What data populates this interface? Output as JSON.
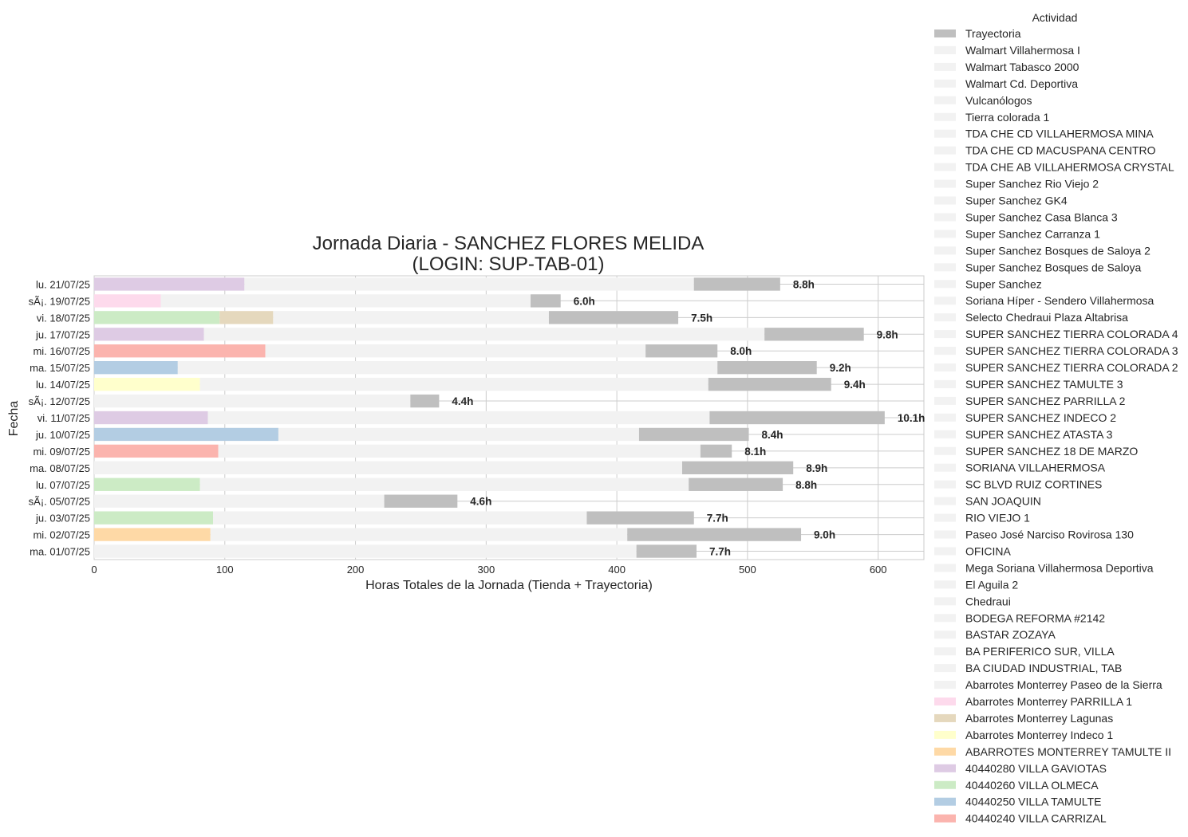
{
  "chart_data": {
    "type": "bar",
    "orientation": "horizontal",
    "stacked": true,
    "title": "Jornada Diaria - SANCHEZ FLORES MELIDA\n(LOGIN: SUP-TAB-01)",
    "xlabel": "Horas Totales de la Jornada (Tienda + Trayectoria)",
    "ylabel": "Fecha",
    "xlim": [
      0,
      635
    ],
    "xticks": [
      0,
      100,
      200,
      300,
      400,
      500,
      600
    ],
    "grid": true,
    "legend_title": "Actividad",
    "legend_placement": "outside-right",
    "colors": {
      "trayectoria": "#bfbfbf",
      "other_store": "#f2f2f2",
      "Abarrotes Monterrey PARRILLA 1": "#fddaec",
      "Abarrotes Monterrey Lagunas": "#e5d8bd",
      "Abarrotes Monterrey Indeco 1": "#ffffcc",
      "ABARROTES MONTERREY TAMULTE II": "#fed9a6",
      "40440280 VILLA GAVIOTAS": "#decbe4",
      "40440260 VILLA OLMECA": "#ccebc5",
      "40440250 VILLA TAMULTE": "#b3cde3",
      "40440240 VILLA CARRIZAL": "#fbb4ae"
    },
    "legend": [
      "Trayectoria",
      "Walmart Villahermosa I",
      "Walmart Tabasco 2000",
      "Walmart Cd. Deportiva",
      "Vulcanólogos",
      "Tierra colorada 1",
      "TDA CHE CD VILLAHERMOSA MINA",
      "TDA CHE CD MACUSPANA CENTRO",
      "TDA CHE AB VILLAHERMOSA CRYSTAL",
      "Super Sanchez Rio Viejo 2",
      "Super Sanchez GK4",
      "Super Sanchez Casa Blanca 3",
      "Super Sanchez Carranza 1",
      "Super Sanchez Bosques de Saloya 2",
      "Super Sanchez Bosques de Saloya",
      "Super Sanchez",
      "Soriana Híper - Sendero Villahermosa",
      "Selecto Chedraui Plaza Altabrisa",
      "SUPER SANCHEZ TIERRA COLORADA 4",
      "SUPER SANCHEZ TIERRA COLORADA 3",
      "SUPER SANCHEZ TIERRA COLORADA 2",
      "SUPER SANCHEZ TAMULTE 3",
      "SUPER SANCHEZ PARRILLA 2",
      "SUPER SANCHEZ INDECO  2",
      "SUPER SANCHEZ ATASTA  3",
      "SUPER SANCHEZ 18 DE MARZO",
      "SORIANA VILLAHERMOSA",
      "SC BLVD RUIZ CORTINES",
      "SAN JOAQUIN",
      "RIO VIEJO 1",
      "Paseo José Narciso Rovirosa 130",
      "OFICINA",
      "Mega Soriana Villahermosa Deportiva",
      "El Aguila 2",
      "Chedraui",
      "BODEGA REFORMA #2142",
      "BASTAR ZOZAYA",
      "BA PERIFERICO SUR, VILLA",
      "BA CIUDAD INDUSTRIAL, TAB",
      "Abarrotes Monterrey Paseo de la Sierra",
      "Abarrotes Monterrey PARRILLA 1",
      "Abarrotes Monterrey Lagunas",
      "Abarrotes Monterrey Indeco 1",
      "ABARROTES MONTERREY TAMULTE II",
      "40440280 VILLA GAVIOTAS",
      "40440260 VILLA OLMECA",
      "40440250 VILLA TAMULTE",
      "40440240 VILLA CARRIZAL"
    ],
    "rows": [
      {
        "date": "lu. 21/07/25",
        "label": "8.8h",
        "segments": [
          {
            "name": "40440280 VILLA GAVIOTAS",
            "start": 0,
            "end": 115
          },
          {
            "name": "other",
            "start": 115,
            "end": 459
          },
          {
            "name": "Trayectoria",
            "start": 459,
            "end": 525
          }
        ]
      },
      {
        "date": "sÃ¡. 19/07/25",
        "label": "6.0h",
        "segments": [
          {
            "name": "Abarrotes Monterrey PARRILLA 1",
            "start": 0,
            "end": 51
          },
          {
            "name": "other",
            "start": 51,
            "end": 334
          },
          {
            "name": "Trayectoria",
            "start": 334,
            "end": 357
          }
        ]
      },
      {
        "date": "vi. 18/07/25",
        "label": "7.5h",
        "segments": [
          {
            "name": "40440260 VILLA OLMECA",
            "start": 0,
            "end": 96
          },
          {
            "name": "Abarrotes Monterrey Lagunas",
            "start": 96,
            "end": 137
          },
          {
            "name": "other",
            "start": 137,
            "end": 348
          },
          {
            "name": "Trayectoria",
            "start": 348,
            "end": 447
          }
        ]
      },
      {
        "date": "ju. 17/07/25",
        "label": "9.8h",
        "segments": [
          {
            "name": "40440280 VILLA GAVIOTAS",
            "start": 0,
            "end": 84
          },
          {
            "name": "other",
            "start": 84,
            "end": 513
          },
          {
            "name": "Trayectoria",
            "start": 513,
            "end": 589
          }
        ]
      },
      {
        "date": "mi. 16/07/25",
        "label": "8.0h",
        "segments": [
          {
            "name": "40440240 VILLA CARRIZAL",
            "start": 0,
            "end": 131
          },
          {
            "name": "other",
            "start": 131,
            "end": 422
          },
          {
            "name": "Trayectoria",
            "start": 422,
            "end": 477
          }
        ]
      },
      {
        "date": "ma. 15/07/25",
        "label": "9.2h",
        "segments": [
          {
            "name": "40440250 VILLA TAMULTE",
            "start": 0,
            "end": 64
          },
          {
            "name": "other",
            "start": 64,
            "end": 477
          },
          {
            "name": "Trayectoria",
            "start": 477,
            "end": 553
          }
        ]
      },
      {
        "date": "lu. 14/07/25",
        "label": "9.4h",
        "segments": [
          {
            "name": "Abarrotes Monterrey Indeco 1",
            "start": 0,
            "end": 81
          },
          {
            "name": "other",
            "start": 81,
            "end": 470
          },
          {
            "name": "Trayectoria",
            "start": 470,
            "end": 564
          }
        ]
      },
      {
        "date": "sÃ¡. 12/07/25",
        "label": "4.4h",
        "segments": [
          {
            "name": "other",
            "start": 0,
            "end": 242
          },
          {
            "name": "Trayectoria",
            "start": 242,
            "end": 264
          }
        ]
      },
      {
        "date": "vi. 11/07/25",
        "label": "10.1h",
        "segments": [
          {
            "name": "40440280 VILLA GAVIOTAS",
            "start": 0,
            "end": 87
          },
          {
            "name": "other",
            "start": 87,
            "end": 471
          },
          {
            "name": "Trayectoria",
            "start": 471,
            "end": 605
          }
        ]
      },
      {
        "date": "ju. 10/07/25",
        "label": "8.4h",
        "segments": [
          {
            "name": "40440250 VILLA TAMULTE",
            "start": 0,
            "end": 141
          },
          {
            "name": "other",
            "start": 141,
            "end": 417
          },
          {
            "name": "Trayectoria",
            "start": 417,
            "end": 501
          }
        ]
      },
      {
        "date": "mi. 09/07/25",
        "label": "8.1h",
        "segments": [
          {
            "name": "40440240 VILLA CARRIZAL",
            "start": 0,
            "end": 95
          },
          {
            "name": "other",
            "start": 95,
            "end": 464
          },
          {
            "name": "Trayectoria",
            "start": 464,
            "end": 488
          }
        ]
      },
      {
        "date": "ma. 08/07/25",
        "label": "8.9h",
        "segments": [
          {
            "name": "other",
            "start": 0,
            "end": 450
          },
          {
            "name": "Trayectoria",
            "start": 450,
            "end": 535
          }
        ]
      },
      {
        "date": "lu. 07/07/25",
        "label": "8.8h",
        "segments": [
          {
            "name": "40440260 VILLA OLMECA",
            "start": 0,
            "end": 81
          },
          {
            "name": "other",
            "start": 81,
            "end": 455
          },
          {
            "name": "Trayectoria",
            "start": 455,
            "end": 527
          }
        ]
      },
      {
        "date": "sÃ¡. 05/07/25",
        "label": "4.6h",
        "segments": [
          {
            "name": "other",
            "start": 0,
            "end": 222
          },
          {
            "name": "Trayectoria",
            "start": 222,
            "end": 278
          }
        ]
      },
      {
        "date": "ju. 03/07/25",
        "label": "7.7h",
        "segments": [
          {
            "name": "40440260 VILLA OLMECA",
            "start": 0,
            "end": 91
          },
          {
            "name": "other",
            "start": 91,
            "end": 377
          },
          {
            "name": "Trayectoria",
            "start": 377,
            "end": 459
          }
        ]
      },
      {
        "date": "mi. 02/07/25",
        "label": "9.0h",
        "segments": [
          {
            "name": "ABARROTES MONTERREY TAMULTE II",
            "start": 0,
            "end": 89
          },
          {
            "name": "other",
            "start": 89,
            "end": 408
          },
          {
            "name": "Trayectoria",
            "start": 408,
            "end": 541
          }
        ]
      },
      {
        "date": "ma. 01/07/25",
        "label": "7.7h",
        "segments": [
          {
            "name": "other",
            "start": 0,
            "end": 415
          },
          {
            "name": "Trayectoria",
            "start": 415,
            "end": 461
          }
        ]
      }
    ]
  }
}
